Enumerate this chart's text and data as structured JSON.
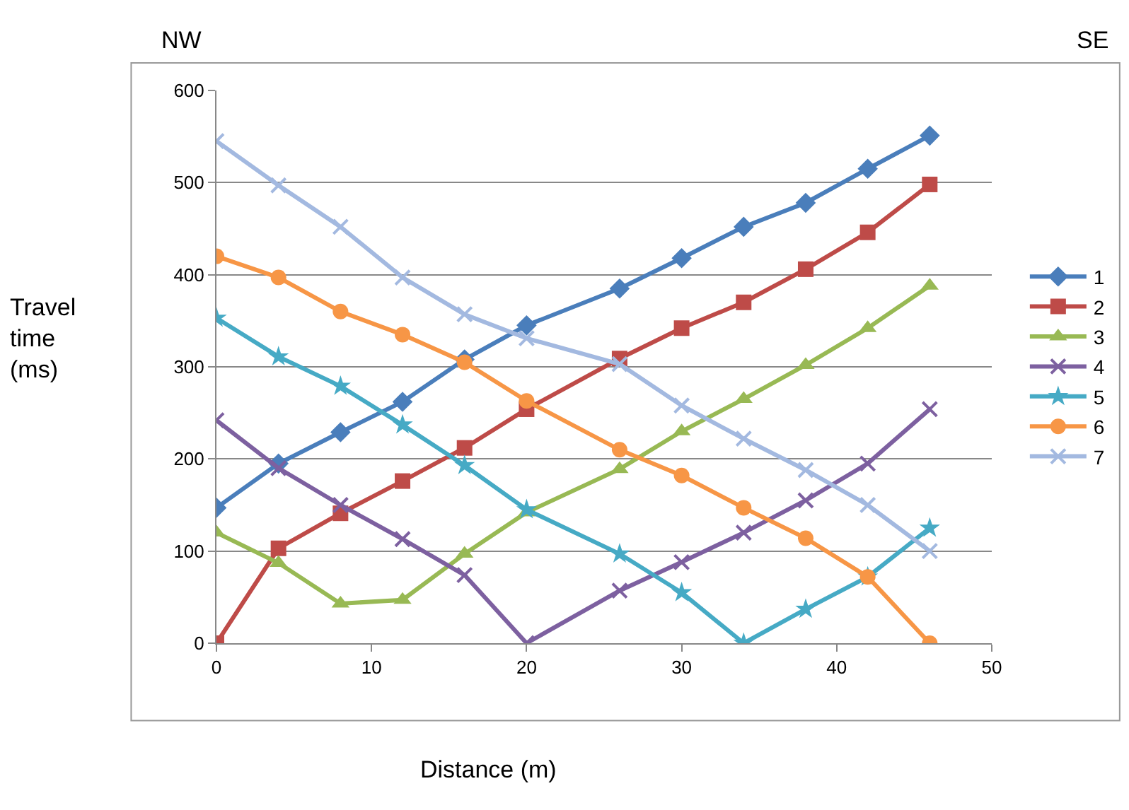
{
  "chart_data": {
    "type": "line",
    "xlabel": "Distance (m)",
    "ylabel": "Travel time (ms)",
    "annotations": [
      "NW",
      "SE"
    ],
    "x": [
      0,
      4,
      8,
      12,
      16,
      20,
      26,
      30,
      34,
      38,
      42,
      46
    ],
    "xlim": [
      0,
      50
    ],
    "xticks": [
      0,
      10,
      20,
      30,
      40,
      50
    ],
    "ylim": [
      0,
      600
    ],
    "yticks": [
      0,
      100,
      200,
      300,
      400,
      500,
      600
    ],
    "grid": "y",
    "legend": "right",
    "series": [
      {
        "name": "1",
        "color": "#4a7ebb",
        "marker": "diamond",
        "values": [
          147,
          195,
          229,
          262,
          308,
          345,
          385,
          418,
          452,
          478,
          515,
          551
        ]
      },
      {
        "name": "2",
        "color": "#be4b48",
        "marker": "square",
        "values": [
          0,
          103,
          141,
          176,
          212,
          254,
          309,
          342,
          370,
          406,
          446,
          498
        ]
      },
      {
        "name": "3",
        "color": "#98b954",
        "marker": "triangle",
        "values": [
          120,
          87,
          43,
          47,
          97,
          142,
          189,
          230,
          265,
          302,
          342,
          388
        ]
      },
      {
        "name": "4",
        "color": "#7d60a0",
        "marker": "cross",
        "values": [
          242,
          190,
          150,
          113,
          74,
          0,
          57,
          88,
          120,
          155,
          195,
          254
        ]
      },
      {
        "name": "5",
        "color": "#46aac5",
        "marker": "star",
        "values": [
          353,
          311,
          279,
          237,
          193,
          145,
          97,
          55,
          0,
          37,
          72,
          125
        ]
      },
      {
        "name": "6",
        "color": "#f79646",
        "marker": "circle",
        "values": [
          420,
          397,
          360,
          335,
          305,
          263,
          210,
          182,
          147,
          114,
          72,
          0
        ]
      },
      {
        "name": "7",
        "color": "#a3b9e0",
        "marker": "cross",
        "values": [
          545,
          497,
          452,
          397,
          357,
          331,
          303,
          258,
          222,
          188,
          150,
          100
        ]
      }
    ]
  }
}
